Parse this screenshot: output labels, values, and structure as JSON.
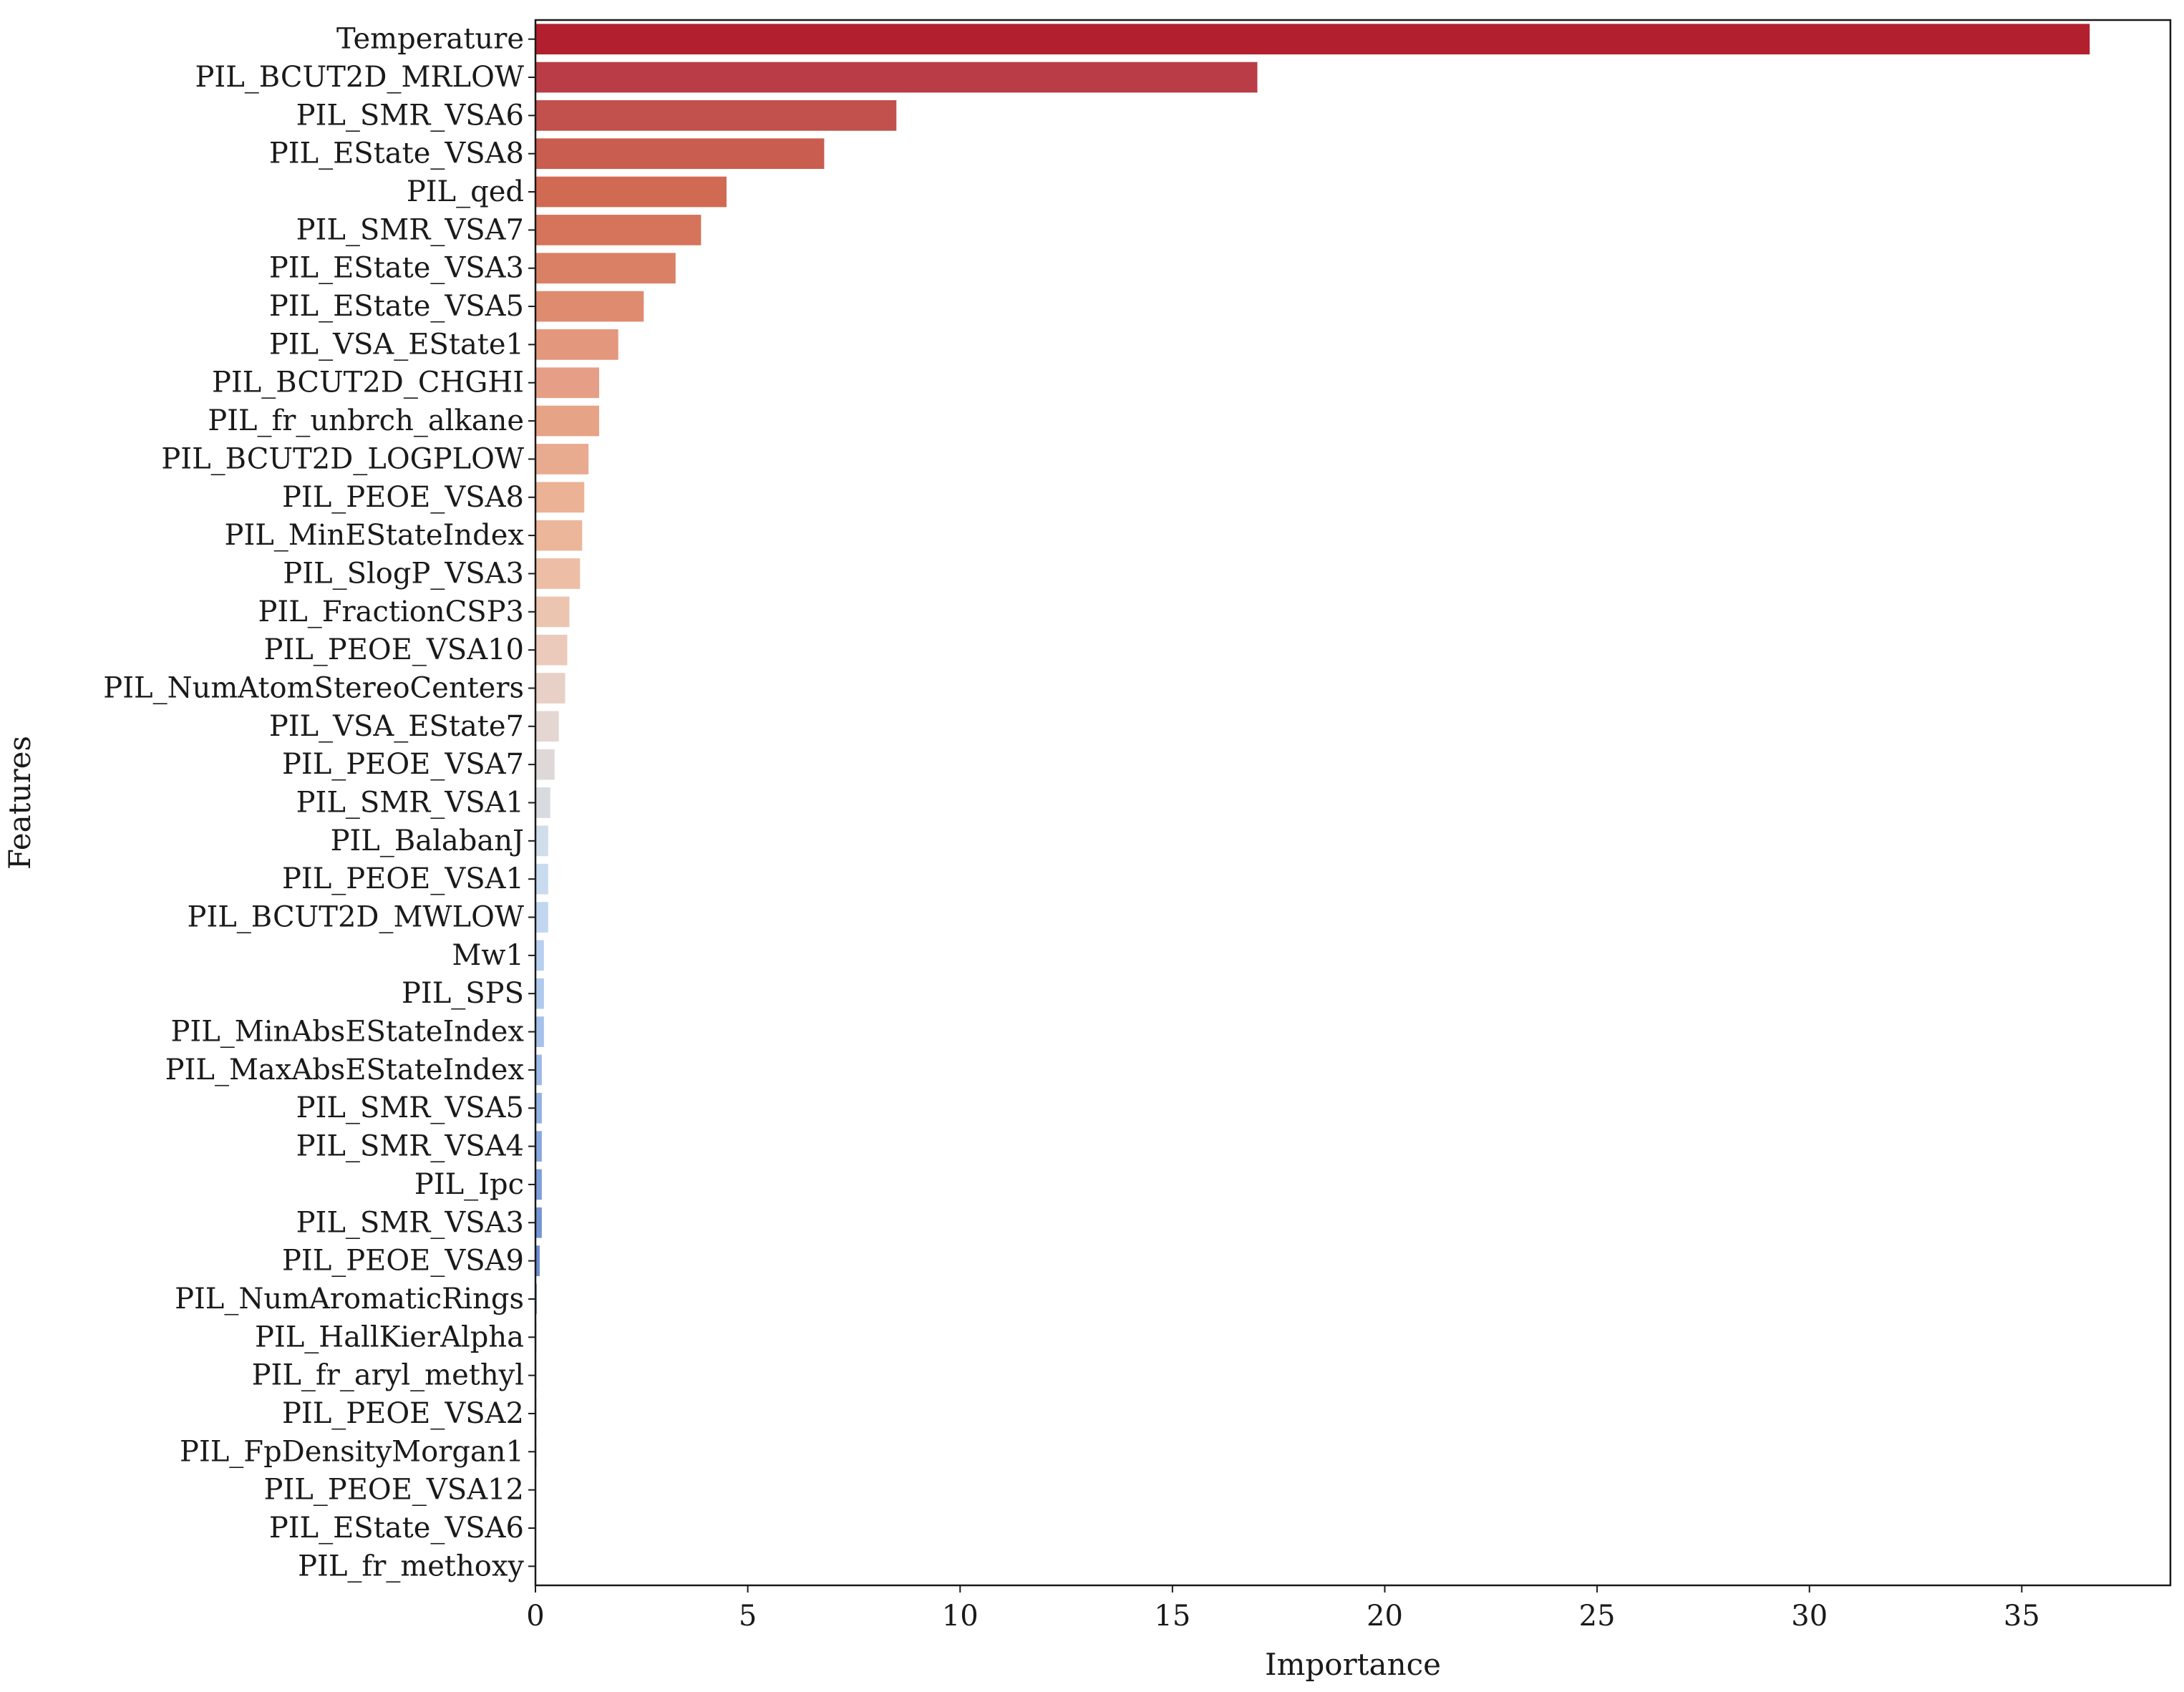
{
  "chart_data": {
    "type": "bar",
    "orientation": "horizontal",
    "title": "",
    "xlabel": "Importance",
    "ylabel": "Features",
    "xlim": [
      0,
      38.5
    ],
    "xticks": [
      0,
      5,
      10,
      15,
      20,
      25,
      30,
      35
    ],
    "grid": false,
    "legend": "none",
    "colormap": "coolwarm (red = high, blue = low)",
    "categories": [
      "Temperature",
      "PIL_BCUT2D_MRLOW",
      "PIL_SMR_VSA6",
      "PIL_EState_VSA8",
      "PIL_qed",
      "PIL_SMR_VSA7",
      "PIL_EState_VSA3",
      "PIL_EState_VSA5",
      "PIL_VSA_EState1",
      "PIL_BCUT2D_CHGHI",
      "PIL_fr_unbrch_alkane",
      "PIL_BCUT2D_LOGPLOW",
      "PIL_PEOE_VSA8",
      "PIL_MinEStateIndex",
      "PIL_SlogP_VSA3",
      "PIL_FractionCSP3",
      "PIL_PEOE_VSA10",
      "PIL_NumAtomStereoCenters",
      "PIL_VSA_EState7",
      "PIL_PEOE_VSA7",
      "PIL_SMR_VSA1",
      "PIL_BalabanJ",
      "PIL_PEOE_VSA1",
      "PIL_BCUT2D_MWLOW",
      "Mw1",
      "PIL_SPS",
      "PIL_MinAbsEStateIndex",
      "PIL_MaxAbsEStateIndex",
      "PIL_SMR_VSA5",
      "PIL_SMR_VSA4",
      "PIL_Ipc",
      "PIL_SMR_VSA3",
      "PIL_PEOE_VSA9",
      "PIL_NumAromaticRings",
      "PIL_HallKierAlpha",
      "PIL_fr_aryl_methyl",
      "PIL_PEOE_VSA2",
      "PIL_FpDensityMorgan1",
      "PIL_PEOE_VSA12",
      "PIL_EState_VSA6",
      "PIL_fr_methoxy"
    ],
    "values": [
      36.6,
      17.0,
      8.5,
      6.8,
      4.5,
      3.9,
      3.3,
      2.55,
      1.95,
      1.5,
      1.5,
      1.25,
      1.15,
      1.1,
      1.05,
      0.8,
      0.75,
      0.7,
      0.55,
      0.45,
      0.35,
      0.3,
      0.3,
      0.3,
      0.2,
      0.2,
      0.2,
      0.15,
      0.15,
      0.15,
      0.15,
      0.15,
      0.1,
      0.03,
      0.02,
      0.02,
      0.02,
      0.02,
      0.01,
      0.01,
      0.01
    ],
    "colors": [
      "#b2202f",
      "#b93c46",
      "#c2504d",
      "#c95d50",
      "#d06a52",
      "#d5745a",
      "#da8064",
      "#df8b6f",
      "#e3977c",
      "#e69f86",
      "#e6a386",
      "#e9ab90",
      "#ebb295",
      "#ecb69b",
      "#edbea5",
      "#ecc5b0",
      "#ebcabb",
      "#e8d0c7",
      "#e4d6d0",
      "#ded9d8",
      "#d7dbe0",
      "#d0ddea",
      "#c9dbee",
      "#c2d6f0",
      "#b8d0ef",
      "#b0caee",
      "#a6c2eb",
      "#9cb9e7",
      "#93b1e3",
      "#89a8df",
      "#7f9fda",
      "#7595d4",
      "#6b8ccf",
      "#6283c9",
      "#5879c3",
      "#4f70bc",
      "#4767b5",
      "#405ead",
      "#3a55a5",
      "#344c9c",
      "#2f4493"
    ]
  }
}
